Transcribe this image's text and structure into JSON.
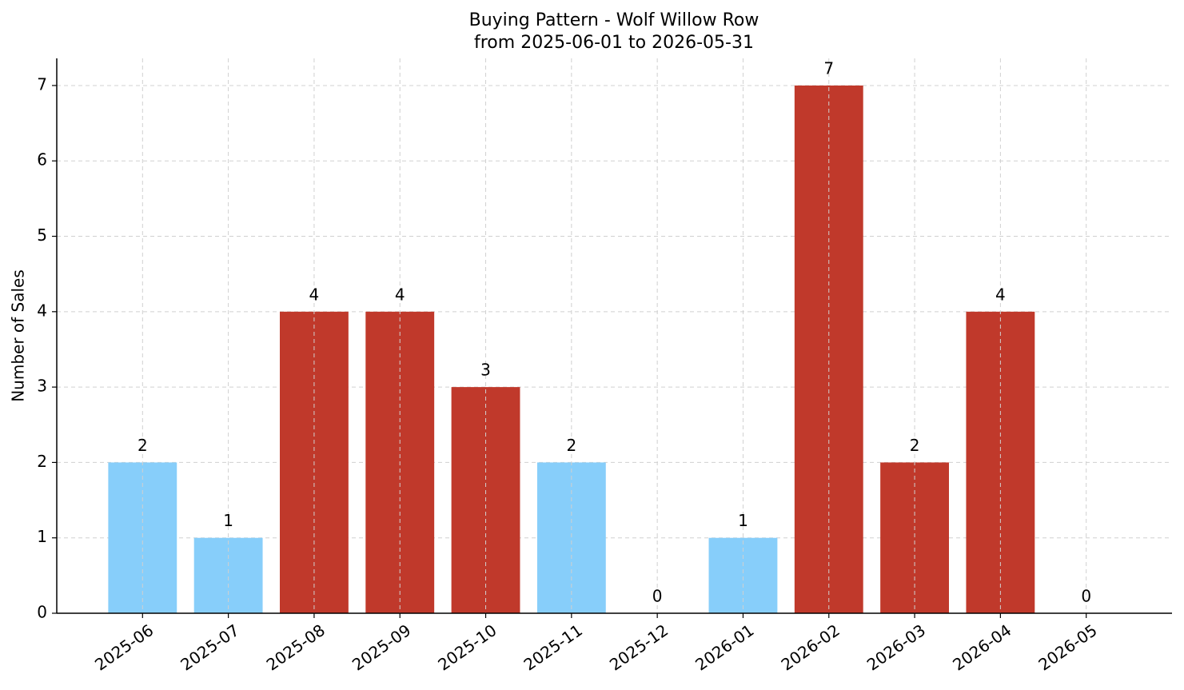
{
  "chart_data": {
    "type": "bar",
    "title": "Buying Pattern - Wolf Willow Row",
    "subtitle": "from 2025-06-01 to 2026-05-31",
    "y_label": "Number of Sales",
    "categories": [
      "2025-06",
      "2025-07",
      "2025-08",
      "2025-09",
      "2025-10",
      "2025-11",
      "2025-12",
      "2026-01",
      "2026-02",
      "2026-03",
      "2026-04",
      "2026-05"
    ],
    "values": [
      2,
      1,
      4,
      4,
      3,
      2,
      0,
      1,
      7,
      2,
      4,
      0
    ],
    "colors": [
      "#87cefa",
      "#87cefa",
      "#c0392b",
      "#c0392b",
      "#c0392b",
      "#87cefa",
      "#87cefa",
      "#87cefa",
      "#c0392b",
      "#c0392b",
      "#c0392b",
      "#87cefa"
    ],
    "ylim": [
      0,
      7.36
    ],
    "yticks": [
      0,
      1,
      2,
      3,
      4,
      5,
      6,
      7
    ],
    "grid": true
  }
}
